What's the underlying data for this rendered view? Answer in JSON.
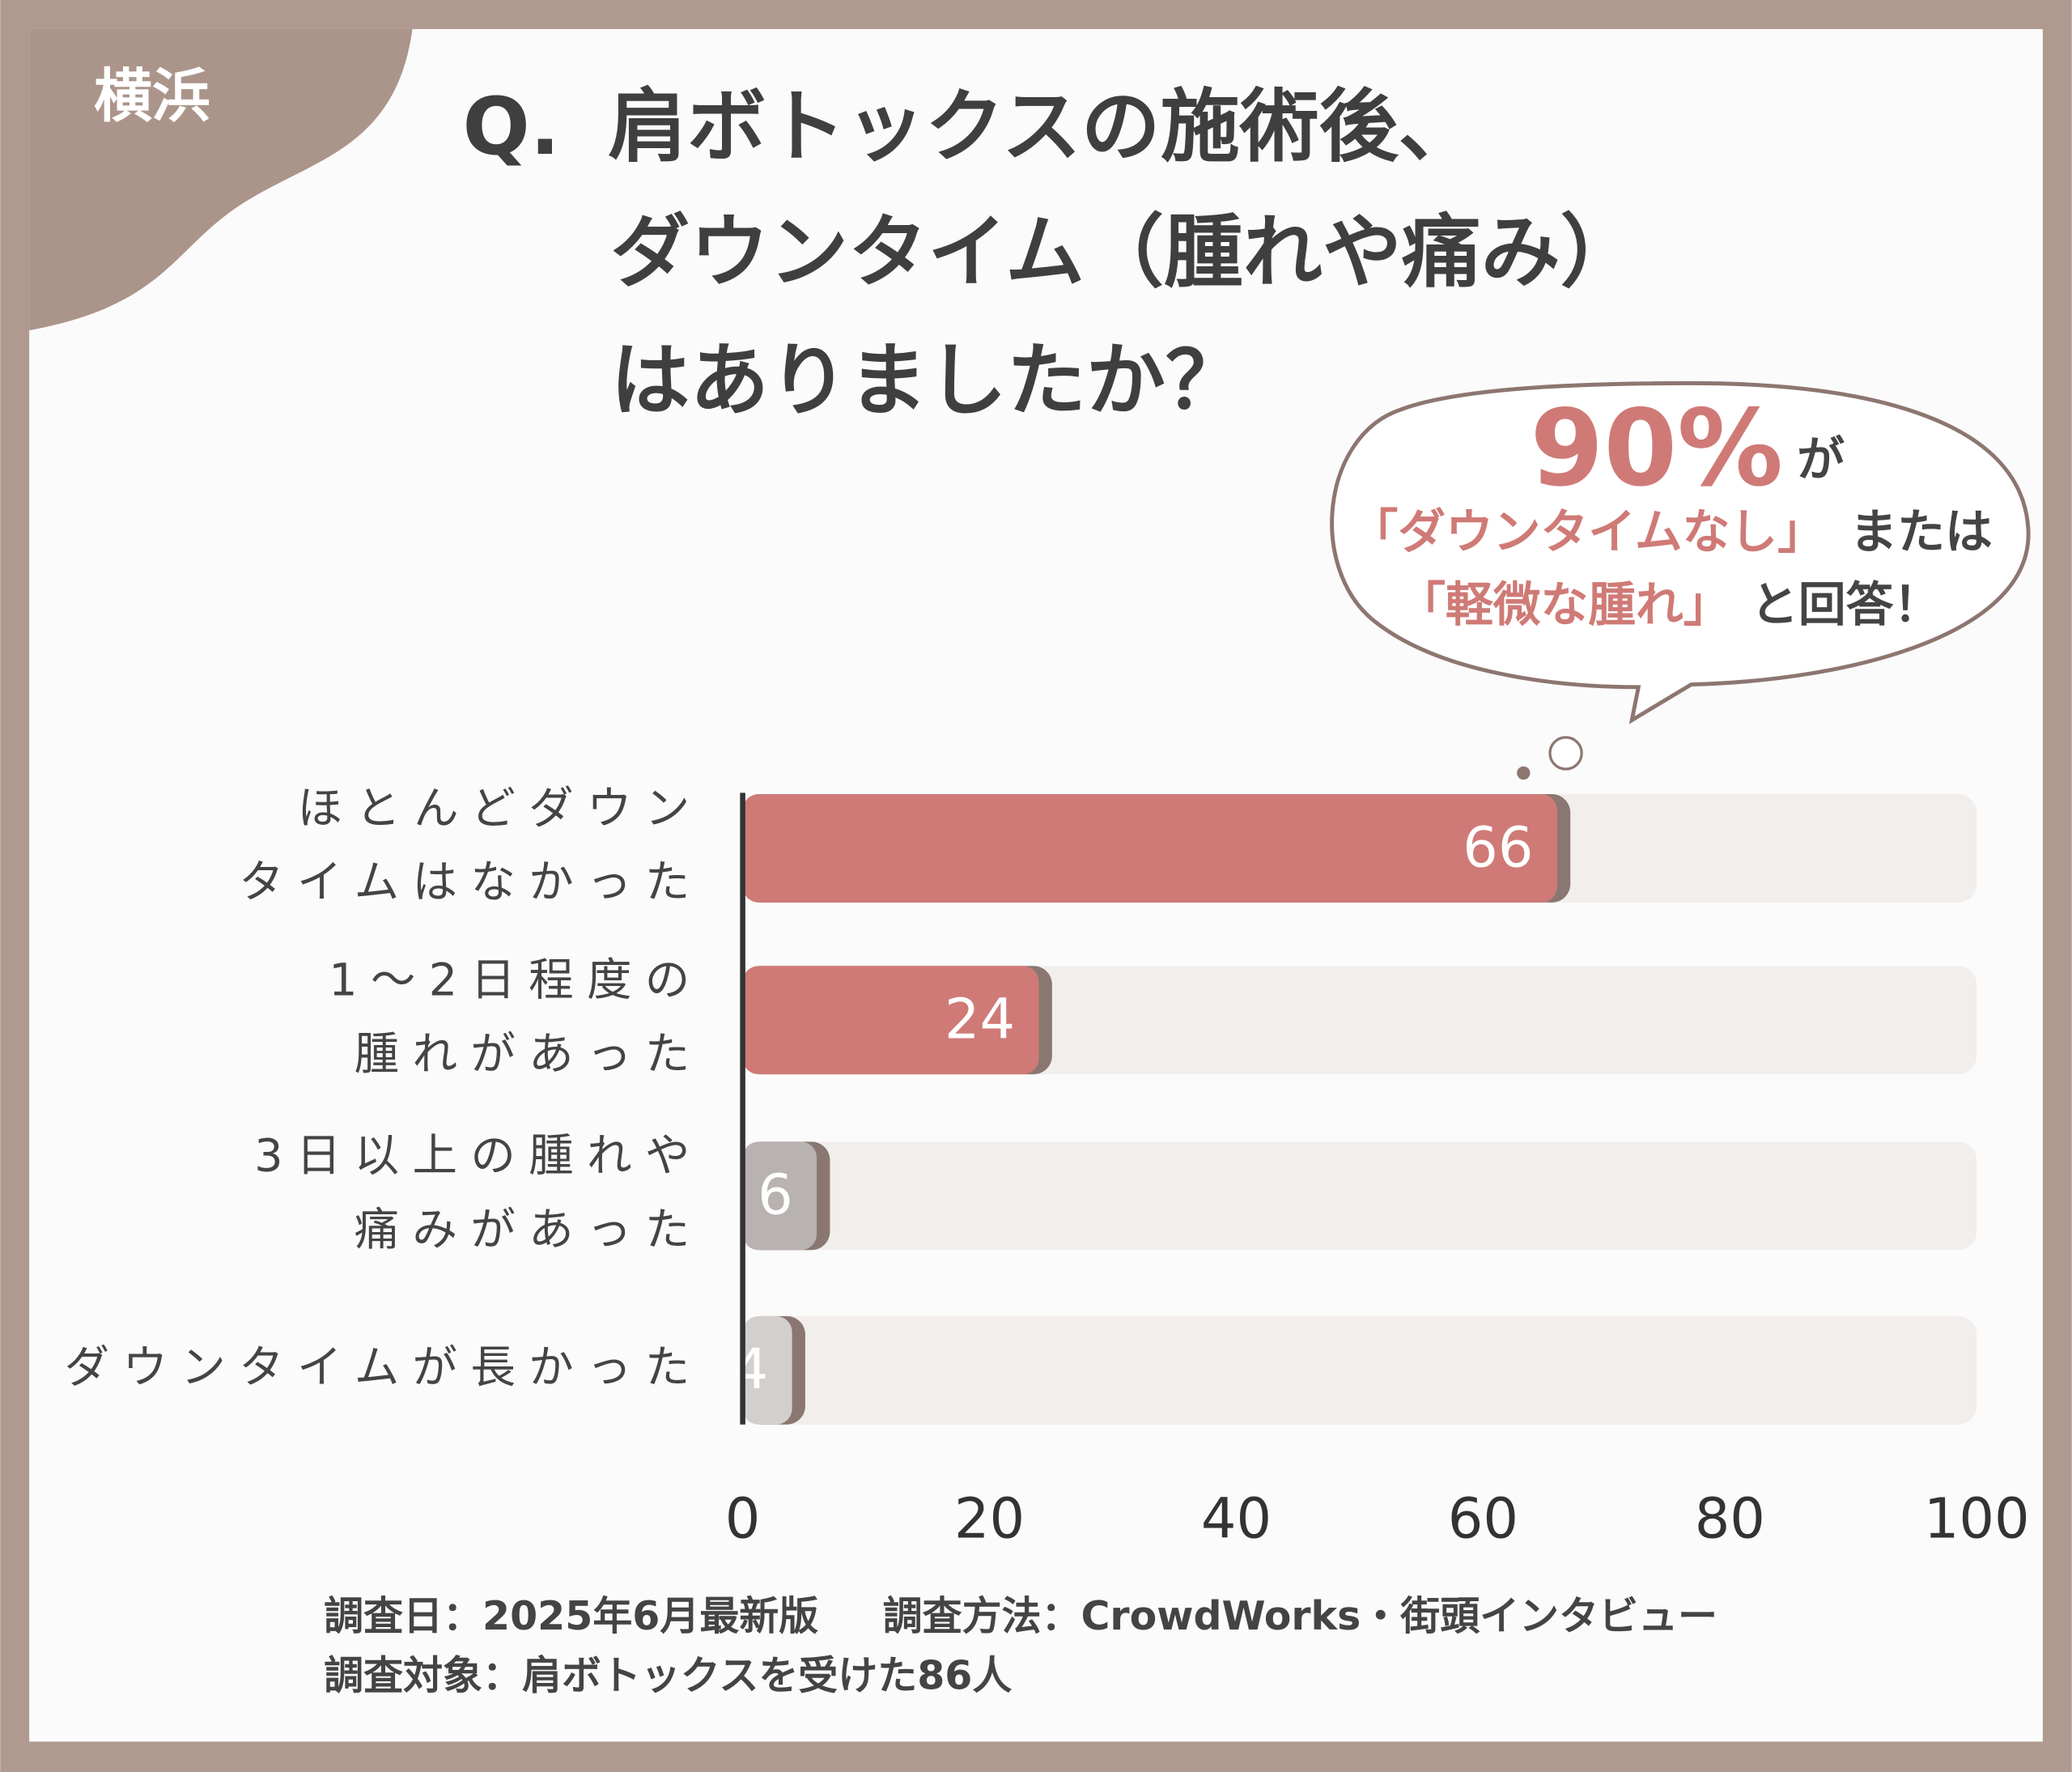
{
  "badge": "横浜",
  "chart_data": {
    "type": "hbar",
    "title": [
      "Q.",
      "肩ボトックスの施術後、",
      "ダウンタイム（腫れや痛み）",
      "はありましたか？"
    ],
    "callout": {
      "highlight": "90%",
      "after_highlight": "が",
      "quote1": "「ダウンタイムなし」",
      "after_quote1": "または",
      "quote2": "「軽微な腫れ」",
      "after_quote2": "と回答！"
    },
    "categories": [
      "ほとんどダウン\nタイムはなかった",
      "1～2日程度の\n腫れがあった",
      "3日以上の腫れや\n痛みがあった",
      "ダウンタイムが長かった"
    ],
    "values": [
      66,
      24,
      6,
      4
    ],
    "colors": [
      "#cf7a76",
      "#cf7a76",
      "#b8b2b0",
      "#d3cfcd"
    ],
    "xlim": [
      0,
      100
    ],
    "xticks": [
      0,
      20,
      40,
      60,
      80,
      100
    ],
    "footnotes": [
      "調査日：2025年6月最新版",
      "調査方法：CrowdWorks・街頭インタビュー",
      "調査対象：肩ボトックスを受けた86人"
    ]
  }
}
